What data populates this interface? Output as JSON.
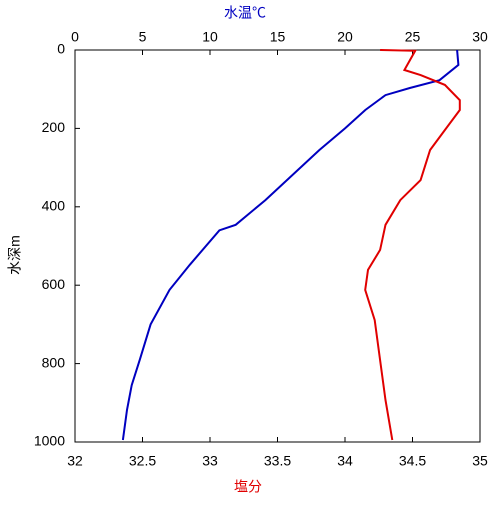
{
  "chart_data": {
    "type": "line",
    "x_top_label": "水温℃",
    "x_bottom_label": "塩分",
    "y_label": "水深m",
    "ylim": [
      0,
      1000
    ],
    "yticks": [
      0,
      200,
      400,
      600,
      800,
      1000
    ],
    "y_inverted": true,
    "xlim": [
      0,
      30
    ],
    "xticks": [
      0,
      5,
      10,
      15,
      20,
      25,
      30
    ],
    "x2lim": [
      32,
      35
    ],
    "x2ticks": [
      32,
      32.5,
      33,
      33.5,
      34,
      34.5,
      35
    ],
    "grid": false,
    "series": [
      {
        "name": "水温℃",
        "color": "#0000c0",
        "axis": "x",
        "depth": [
          0,
          38,
          77,
          97,
          115,
          153,
          200,
          255,
          383,
          446,
          460,
          548,
          612,
          700,
          790,
          855,
          918,
          995
        ],
        "values": [
          28.3,
          28.4,
          27,
          24.8,
          23,
          21.5,
          20,
          18.1,
          14.1,
          11.9,
          10.7,
          8.5,
          7,
          5.6,
          4.8,
          4.2,
          3.85,
          3.55
        ]
      },
      {
        "name": "塩分",
        "color": "#e00000",
        "axis": "x2",
        "depth": [
          0,
          2,
          51,
          64,
          89,
          128,
          153,
          204,
          255,
          332,
          383,
          446,
          510,
          561,
          612,
          689,
          791,
          893,
          995
        ],
        "values": [
          34.26,
          34.52,
          34.44,
          34.56,
          34.74,
          34.85,
          34.85,
          34.74,
          34.63,
          34.56,
          34.41,
          34.3,
          34.26,
          34.17,
          34.15,
          34.22,
          34.26,
          34.3,
          34.35
        ]
      }
    ]
  }
}
